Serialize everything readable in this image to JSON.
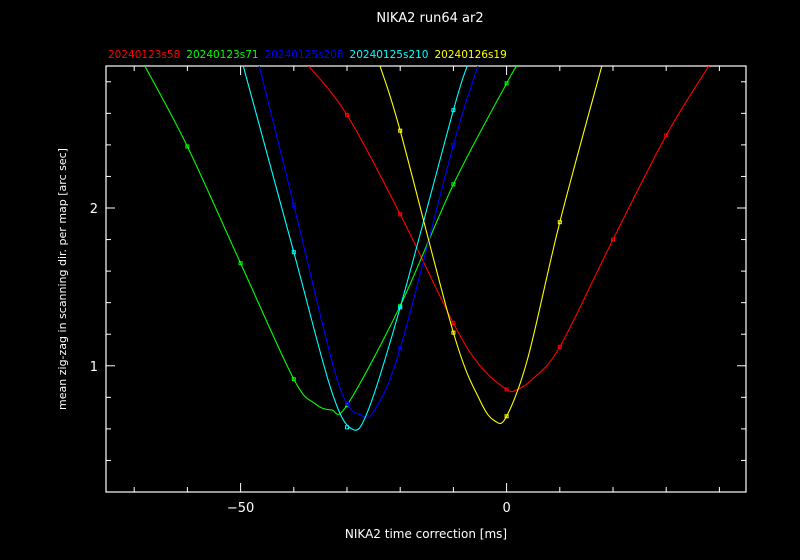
{
  "chart_data": {
    "type": "line",
    "title": "NIKA2 run64 ar2",
    "xlabel": "NIKA2 time correction [ms]",
    "ylabel": "mean zig-zag in scanning dir. per map [arc sec]",
    "xlim": [
      -75.3,
      45
    ],
    "ylim": [
      0.2,
      2.9
    ],
    "xticks_major": [
      -50,
      0
    ],
    "xtick_labels": [
      "−50",
      "0"
    ],
    "xticks_minor_step": 10,
    "yticks_major": [
      1,
      2
    ],
    "ytick_labels": [
      "1",
      "2"
    ],
    "yticks_minor_step": 0.2,
    "grid": false,
    "legend_placement": "top",
    "series": [
      {
        "name": "20240123s58",
        "color": "#ff0000",
        "points": [
          [
            -30,
            2.59
          ],
          [
            -20,
            1.96
          ],
          [
            -10,
            1.27
          ],
          [
            0,
            0.85
          ],
          [
            10,
            1.12
          ],
          [
            20,
            1.8
          ],
          [
            30,
            2.46
          ]
        ],
        "curve": [
          [
            -37.2,
            2.9
          ],
          [
            -30,
            2.59
          ],
          [
            -20,
            1.96
          ],
          [
            -10,
            1.27
          ],
          [
            -5,
            1.0
          ],
          [
            0,
            0.85
          ],
          [
            2,
            0.85
          ],
          [
            5,
            0.92
          ],
          [
            10,
            1.12
          ],
          [
            20,
            1.8
          ],
          [
            30,
            2.46
          ],
          [
            38,
            2.9
          ]
        ]
      },
      {
        "name": "20240123s71",
        "color": "#00ff00",
        "points": [
          [
            -60,
            2.39
          ],
          [
            -50,
            1.65
          ],
          [
            -40,
            0.915
          ],
          [
            -30,
            0.75
          ],
          [
            -20,
            1.38
          ],
          [
            -10,
            2.15
          ],
          [
            0,
            2.79
          ]
        ],
        "curve": [
          [
            -68,
            2.9
          ],
          [
            -60,
            2.39
          ],
          [
            -50,
            1.65
          ],
          [
            -40,
            0.915
          ],
          [
            -36,
            0.76
          ],
          [
            -32.9,
            0.72
          ],
          [
            -30,
            0.75
          ],
          [
            -20,
            1.38
          ],
          [
            -10,
            2.15
          ],
          [
            0,
            2.79
          ],
          [
            1.9,
            2.9
          ]
        ]
      },
      {
        "name": "20240125s208",
        "color": "#0000ff",
        "points": [
          [
            -40,
            2.02
          ],
          [
            -30,
            0.76
          ],
          [
            -20,
            1.11
          ],
          [
            -10,
            2.4
          ]
        ],
        "curve": [
          [
            -46.5,
            2.9
          ],
          [
            -40,
            2.02
          ],
          [
            -33,
            1.05
          ],
          [
            -30,
            0.76
          ],
          [
            -27.5,
            0.69
          ],
          [
            -25,
            0.71
          ],
          [
            -20,
            1.11
          ],
          [
            -10,
            2.4
          ],
          [
            -5.4,
            2.9
          ]
        ]
      },
      {
        "name": "20240125s210",
        "color": "#00ffff",
        "points": [
          [
            -40,
            1.72
          ],
          [
            -30,
            0.61
          ],
          [
            -20,
            1.37
          ],
          [
            -10,
            2.62
          ]
        ],
        "curve": [
          [
            -49.5,
            2.9
          ],
          [
            -40,
            1.72
          ],
          [
            -33,
            0.85
          ],
          [
            -29.1,
            0.6
          ],
          [
            -26,
            0.72
          ],
          [
            -20,
            1.37
          ],
          [
            -10,
            2.62
          ],
          [
            -7.4,
            2.9
          ]
        ]
      },
      {
        "name": "20240126s19",
        "color": "#ffff00",
        "points": [
          [
            -20,
            2.49
          ],
          [
            -10,
            1.21
          ],
          [
            0,
            0.68
          ],
          [
            10,
            1.91
          ]
        ],
        "curve": [
          [
            -23.8,
            2.9
          ],
          [
            -20,
            2.49
          ],
          [
            -10,
            1.21
          ],
          [
            -5,
            0.78
          ],
          [
            -2.2,
            0.65
          ],
          [
            0,
            0.68
          ],
          [
            4,
            1.05
          ],
          [
            10,
            1.91
          ],
          [
            17.9,
            2.9
          ]
        ]
      }
    ]
  }
}
